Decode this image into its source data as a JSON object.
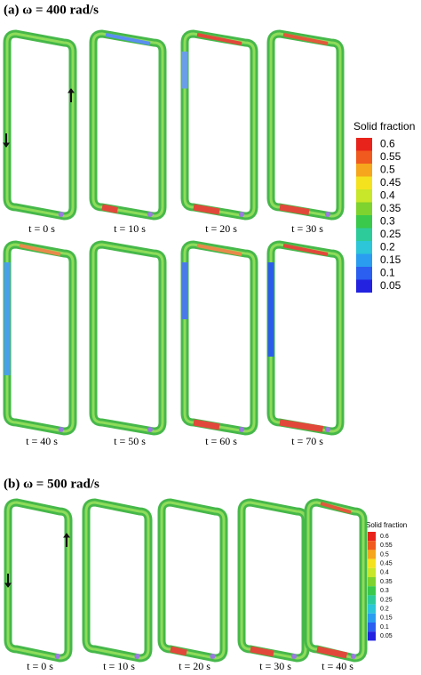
{
  "panel_a": {
    "title": "(a) ω = 400 rad/s",
    "time_labels": [
      "t = 0 s",
      "t = 10 s",
      "t = 20 s",
      "t = 30 s",
      "t = 40 s",
      "t = 50 s",
      "t = 60 s",
      "t = 70 s"
    ],
    "colorbar": {
      "title": "Solid fraction",
      "labels": [
        "0.6",
        "0.55",
        "0.5",
        "0.45",
        "0.4",
        "0.35",
        "0.3",
        "0.25",
        "0.2",
        "0.15",
        "0.1",
        "0.05"
      ]
    }
  },
  "panel_b": {
    "title": "(b) ω = 500 rad/s",
    "time_labels": [
      "t = 0 s",
      "t = 10 s",
      "t = 20 s",
      "t = 30 s",
      "t = 40 s"
    ],
    "colorbar": {
      "title": "Solid fraction",
      "labels": [
        "0.6",
        "0.55",
        "0.5",
        "0.45",
        "0.4",
        "0.35",
        "0.3",
        "0.25",
        "0.2",
        "0.15",
        "0.1",
        "0.05"
      ]
    }
  }
}
